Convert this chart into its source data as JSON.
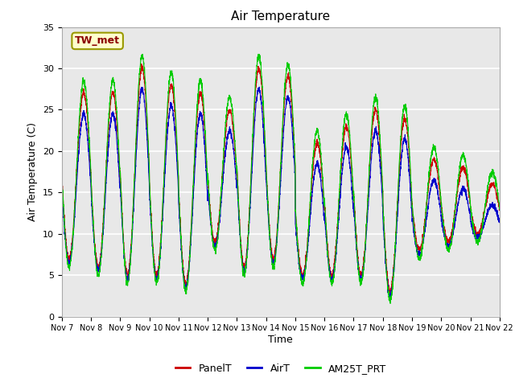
{
  "title": "Air Temperature",
  "ylabel": "Air Temperature (C)",
  "xlabel": "Time",
  "ylim": [
    0,
    35
  ],
  "xlim": [
    0,
    360
  ],
  "plot_bg_color": "#e8e8e8",
  "grid_color": "white",
  "legend_labels": [
    "PanelT",
    "AirT",
    "AM25T_PRT"
  ],
  "legend_colors": [
    "#cc0000",
    "#0000cc",
    "#00cc00"
  ],
  "station_label": "TW_met",
  "xtick_labels": [
    "Nov 7",
    "Nov 8",
    "Nov 9",
    "Nov 10",
    "Nov 11",
    "Nov 12",
    "Nov 13",
    "Nov 14",
    "Nov 15",
    "Nov 16",
    "Nov 17",
    "Nov 18",
    "Nov 19",
    "Nov 20",
    "Nov 21",
    "Nov 22"
  ],
  "xtick_positions": [
    0,
    24,
    48,
    72,
    96,
    120,
    144,
    168,
    192,
    216,
    240,
    264,
    288,
    312,
    336,
    360
  ],
  "ytick_labels": [
    "0",
    "5",
    "10",
    "15",
    "20",
    "25",
    "30",
    "35"
  ],
  "ytick_positions": [
    0,
    5,
    10,
    15,
    20,
    25,
    30,
    35
  ],
  "day_params": [
    [
      7,
      27
    ],
    [
      6,
      27
    ],
    [
      5,
      30
    ],
    [
      5,
      28
    ],
    [
      4,
      27
    ],
    [
      9,
      25
    ],
    [
      6,
      30
    ],
    [
      7,
      29
    ],
    [
      5,
      21
    ],
    [
      5,
      23
    ],
    [
      5,
      25
    ],
    [
      3,
      24
    ],
    [
      8,
      19
    ],
    [
      9,
      18
    ],
    [
      10,
      16
    ],
    [
      10,
      16
    ]
  ]
}
